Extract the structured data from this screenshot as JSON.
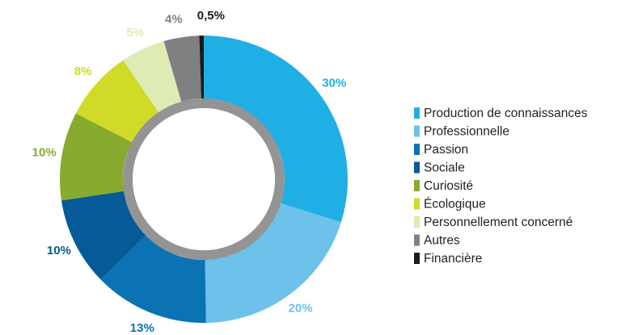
{
  "chart_data": {
    "type": "donut",
    "categories": [
      "Production de connaissances",
      "Professionnelle",
      "Passion",
      "Sociale",
      "Curiosité",
      "Écologique",
      "Personnellement concerné",
      "Autres",
      "Financière"
    ],
    "values": [
      30,
      20,
      13,
      10,
      10,
      8,
      5,
      4,
      0.5
    ],
    "value_labels": [
      "30%",
      "20%",
      "13%",
      "10%",
      "10%",
      "8%",
      "5%",
      "4%",
      "0,5%"
    ],
    "colors": [
      "#20afe5",
      "#6dc1ea",
      "#0b72b3",
      "#075a98",
      "#88aa2f",
      "#cfdb27",
      "#dfebb5",
      "#808083",
      "#1b1b1b"
    ],
    "legend": "right"
  }
}
